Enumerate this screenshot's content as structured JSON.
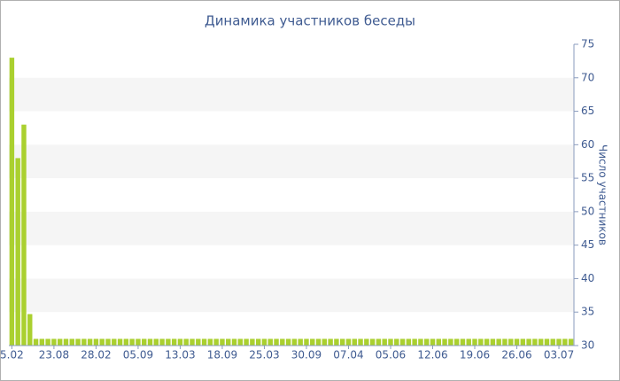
{
  "chart_data": {
    "type": "bar",
    "title": "Динамика участников беседы",
    "y_axis_label": "Число участников",
    "categories": [
      "5.02",
      null,
      null,
      null,
      null,
      null,
      null,
      "23.08",
      null,
      null,
      null,
      null,
      null,
      null,
      "28.02",
      null,
      null,
      null,
      null,
      null,
      null,
      "05.09",
      null,
      null,
      null,
      null,
      null,
      null,
      "13.03",
      null,
      null,
      null,
      null,
      null,
      null,
      "18.09",
      null,
      null,
      null,
      null,
      null,
      null,
      "25.03",
      null,
      null,
      null,
      null,
      null,
      null,
      "30.09",
      null,
      null,
      null,
      null,
      null,
      null,
      "07.04",
      null,
      null,
      null,
      null,
      null,
      null,
      "05.06",
      null,
      null,
      null,
      null,
      null,
      null,
      "12.06",
      null,
      null,
      null,
      null,
      null,
      null,
      "19.06",
      null,
      null,
      null,
      null,
      null,
      null,
      "26.06",
      null,
      null,
      null,
      null,
      null,
      null,
      "03.07",
      null,
      null
    ],
    "values": [
      73,
      58,
      63,
      34.7,
      31,
      31,
      31,
      31,
      31,
      31,
      31,
      31,
      31,
      31,
      31,
      31,
      31,
      31,
      31,
      31,
      31,
      31,
      31,
      31,
      31,
      31,
      31,
      31,
      31,
      31,
      31,
      31,
      31,
      31,
      31,
      31,
      31,
      31,
      31,
      31,
      31,
      31,
      31,
      31,
      31,
      31,
      31,
      31,
      31,
      31,
      31,
      31,
      31,
      31,
      31,
      31,
      31,
      31,
      31,
      31,
      31,
      31,
      31,
      31,
      31,
      31,
      31,
      31,
      31,
      31,
      31,
      31,
      31,
      31,
      31,
      31,
      31,
      31,
      31,
      31,
      31,
      31,
      31,
      31,
      31,
      31,
      31,
      31,
      31,
      31,
      31,
      31,
      31,
      31
    ],
    "color": "#aad02f",
    "ylim": [
      30,
      75
    ],
    "yticks": [
      30,
      35,
      40,
      45,
      50,
      55,
      60,
      65,
      70,
      75
    ],
    "y_axis_side": "right",
    "grid": "bands"
  }
}
